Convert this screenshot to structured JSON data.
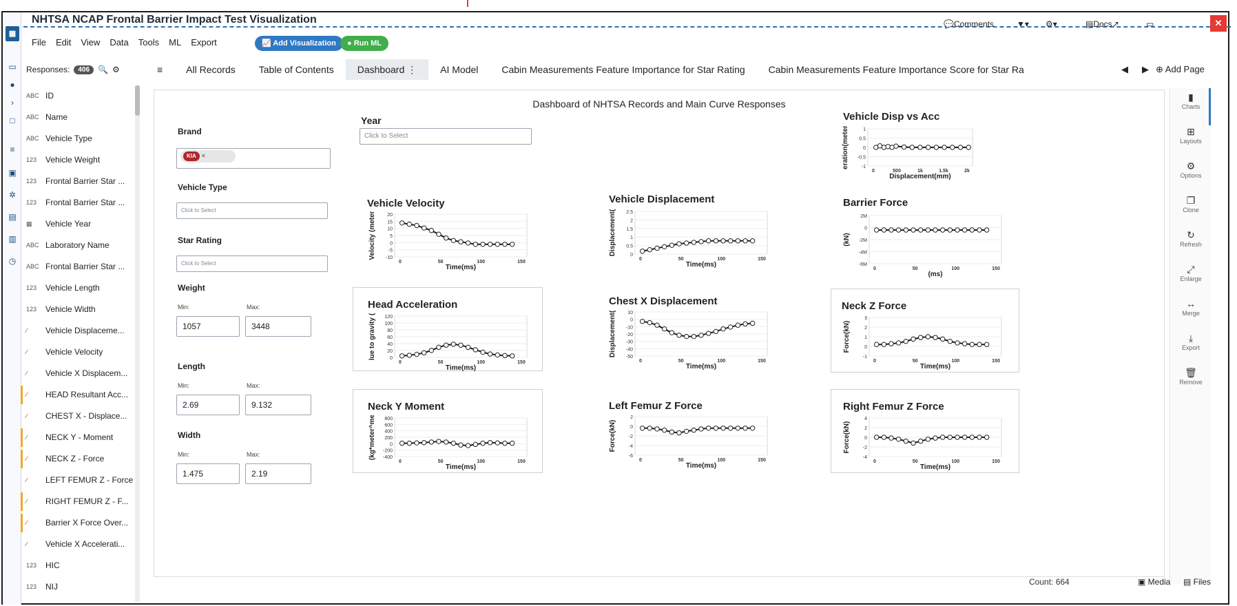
{
  "app": {
    "title": "NHTSA NCAP Frontal Barrier Impact Test Visualization",
    "logo_icon": "app-logo-icon"
  },
  "menu": [
    "File",
    "Edit",
    "View",
    "Data",
    "Tools",
    "ML",
    "Export"
  ],
  "toolbar": {
    "add_visualization": "Add Visualization",
    "run_ml": "Run ML",
    "comments": "Comments",
    "docs": "Docs"
  },
  "colors": {
    "accent_blue": "#2f78c4",
    "run_green": "#3fae4b",
    "close_red": "#e53935",
    "marker_orange": "#f5a623"
  },
  "responses": {
    "label": "Responses:",
    "count": "406",
    "items": [
      {
        "type": "ABC",
        "label": "ID",
        "marked": false
      },
      {
        "type": "ABC",
        "label": "Name",
        "marked": false
      },
      {
        "type": "ABC",
        "label": "Vehicle Type",
        "marked": false
      },
      {
        "type": "123",
        "label": "Vehicle Weight",
        "marked": false
      },
      {
        "type": "123",
        "label": "Frontal Barrier Star ...",
        "marked": false
      },
      {
        "type": "123",
        "label": "Frontal Barrier Star ...",
        "marked": false
      },
      {
        "type": "cal",
        "label": "Vehicle Year",
        "marked": false
      },
      {
        "type": "ABC",
        "label": "Laboratory Name",
        "marked": false
      },
      {
        "type": "ABC",
        "label": "Frontal Barrier Star ...",
        "marked": false
      },
      {
        "type": "123",
        "label": "Vehicle Length",
        "marked": false
      },
      {
        "type": "123",
        "label": "Vehicle Width",
        "marked": false
      },
      {
        "type": "crv",
        "label": "Vehicle Displaceme...",
        "marked": false
      },
      {
        "type": "crv",
        "label": "Vehicle Velocity",
        "marked": false
      },
      {
        "type": "crv",
        "label": "Vehicle X Displacem...",
        "marked": false
      },
      {
        "type": "crv",
        "label": "HEAD Resultant Acc...",
        "marked": true
      },
      {
        "type": "crv",
        "label": "CHEST X - Displace...",
        "marked": false
      },
      {
        "type": "crv",
        "label": "NECK Y - Moment",
        "marked": true
      },
      {
        "type": "crv",
        "label": "NECK Z - Force",
        "marked": true
      },
      {
        "type": "crv",
        "label": "LEFT FEMUR Z - Force",
        "marked": false
      },
      {
        "type": "crv",
        "label": "RIGHT FEMUR Z - F...",
        "marked": true
      },
      {
        "type": "crv",
        "label": "Barrier X Force Over...",
        "marked": true
      },
      {
        "type": "crv",
        "label": "Vehicle X Accelerati...",
        "marked": false
      },
      {
        "type": "123",
        "label": "HIC",
        "marked": false
      },
      {
        "type": "123",
        "label": "NIJ",
        "marked": false
      }
    ]
  },
  "tabs": [
    {
      "label": "All Records",
      "active": false
    },
    {
      "label": "Table of Contents",
      "active": false
    },
    {
      "label": "Dashboard",
      "active": true
    },
    {
      "label": "AI Model",
      "active": false
    },
    {
      "label": "Cabin Measurements Feature Importance for Star Rating",
      "active": false
    },
    {
      "label": "Cabin Measurements Feature Importance Score for Star Ra",
      "active": false
    }
  ],
  "add_page": "Add Page",
  "dashboard": {
    "title": "Dashboard of NHTSA Records and Main Curve Responses",
    "filters": {
      "brand": {
        "label": "Brand",
        "chip": "KIA"
      },
      "year": {
        "label": "Year",
        "placeholder": "Click to Select"
      },
      "vehicle_type": {
        "label": "Vehicle Type",
        "placeholder": "Click to Select"
      },
      "star_rating": {
        "label": "Star Rating",
        "placeholder": "Click to Select"
      },
      "weight": {
        "label": "Weight",
        "min_label": "Min:",
        "max_label": "Max:",
        "min": "1057",
        "max": "3448"
      },
      "length": {
        "label": "Length",
        "min_label": "Min:",
        "max_label": "Max:",
        "min": "2.69",
        "max": "9.132"
      },
      "width": {
        "label": "Width",
        "min_label": "Min:",
        "max_label": "Max:",
        "min": "1.475",
        "max": "2.19"
      }
    }
  },
  "chart_data": [
    {
      "id": "disp-acc",
      "type": "line",
      "title": "Vehicle Disp vs Acc",
      "xlabel": "Displacement(mm)",
      "ylabel": "eration(meter",
      "x_ticks": [
        "0",
        "500",
        "1k",
        "1.5k",
        "2k"
      ],
      "y_ticks": [
        "1",
        "0.5",
        "0",
        "-0.5",
        "-1"
      ],
      "xlim": [
        -200,
        2400
      ],
      "ylim": [
        -1.2,
        1.2
      ],
      "series": [
        {
          "x": [
            0,
            100,
            200,
            300,
            400,
            500,
            700,
            900,
            1100,
            1300,
            1500,
            1700,
            1900,
            2100,
            2300
          ],
          "values": [
            0,
            0.1,
            0,
            0.05,
            0,
            0.08,
            0.02,
            0,
            0,
            0,
            0,
            0,
            0,
            0,
            0
          ]
        }
      ]
    },
    {
      "id": "velocity",
      "type": "line",
      "title": "Vehicle Velocity",
      "xlabel": "Time(ms)",
      "ylabel": "Velocity (meter",
      "x_ticks": [
        "0",
        "50",
        "100",
        "150"
      ],
      "y_ticks": [
        "20",
        "15",
        "10",
        "5",
        "0",
        "-5",
        "-10"
      ],
      "xlim": [
        -10,
        170
      ],
      "ylim": [
        -12,
        22
      ],
      "series": [
        {
          "x": [
            0,
            10,
            20,
            30,
            40,
            50,
            60,
            70,
            80,
            90,
            100,
            110,
            120,
            130,
            140,
            150
          ],
          "values": [
            15,
            14,
            13,
            11,
            9,
            6,
            3,
            1,
            0,
            -1,
            -2,
            -2,
            -2,
            -2,
            -2,
            -2
          ]
        }
      ]
    },
    {
      "id": "displacement",
      "type": "line",
      "title": "Vehicle Displacement",
      "xlabel": "Time(ms)",
      "ylabel": "Displacement(",
      "x_ticks": [
        "0",
        "50",
        "100",
        "150"
      ],
      "y_ticks": [
        "2.5",
        "2",
        "1.5",
        "1",
        "0.5",
        "0"
      ],
      "xlim": [
        -10,
        170
      ],
      "ylim": [
        -0.2,
        2.7
      ],
      "series": [
        {
          "x": [
            0,
            10,
            20,
            30,
            40,
            50,
            60,
            70,
            80,
            90,
            100,
            110,
            120,
            130,
            140,
            150
          ],
          "values": [
            0,
            0.1,
            0.2,
            0.3,
            0.4,
            0.5,
            0.55,
            0.6,
            0.65,
            0.7,
            0.7,
            0.7,
            0.7,
            0.7,
            0.7,
            0.7
          ]
        }
      ]
    },
    {
      "id": "barrier",
      "type": "line",
      "title": "Barrier Force",
      "xlabel": "(ms)",
      "ylabel": "(kN)",
      "x_ticks": [
        "0",
        "50",
        "100",
        "150"
      ],
      "y_ticks": [
        "2M",
        "0",
        "-2M",
        "-4M",
        "-6M"
      ],
      "xlim": [
        -10,
        170
      ],
      "ylim": [
        -7,
        3
      ],
      "series": [
        {
          "x": [
            0,
            10,
            20,
            30,
            40,
            50,
            60,
            70,
            80,
            90,
            100,
            110,
            120,
            130,
            140,
            150
          ],
          "values": [
            0,
            0,
            0,
            0,
            0,
            0,
            0,
            0,
            0,
            0,
            0,
            0,
            0,
            0,
            0,
            0
          ]
        }
      ]
    },
    {
      "id": "head",
      "type": "line",
      "title": "Head Acceleration",
      "xlabel": "Time(ms)",
      "ylabel": "lue to gravity (",
      "x_ticks": [
        "0",
        "50",
        "100",
        "150"
      ],
      "y_ticks": [
        "120",
        "100",
        "80",
        "60",
        "40",
        "20",
        "0"
      ],
      "xlim": [
        -10,
        170
      ],
      "ylim": [
        -5,
        130
      ],
      "series": [
        {
          "x": [
            0,
            10,
            20,
            30,
            40,
            50,
            60,
            70,
            80,
            90,
            100,
            110,
            120,
            130,
            140,
            150
          ],
          "values": [
            0,
            2,
            5,
            10,
            18,
            28,
            35,
            38,
            35,
            28,
            20,
            12,
            6,
            3,
            1,
            0
          ]
        }
      ]
    },
    {
      "id": "chest",
      "type": "line",
      "title": "Chest X Displacement",
      "xlabel": "Time(ms)",
      "ylabel": "Displacement(",
      "x_ticks": [
        "0",
        "50",
        "100",
        "150"
      ],
      "y_ticks": [
        "10",
        "0",
        "-10",
        "-20",
        "-30",
        "-40",
        "-50"
      ],
      "xlim": [
        -10,
        170
      ],
      "ylim": [
        -55,
        15
      ],
      "series": [
        {
          "x": [
            0,
            10,
            20,
            30,
            40,
            50,
            60,
            70,
            80,
            90,
            100,
            110,
            120,
            130,
            140,
            150
          ],
          "values": [
            0,
            -2,
            -6,
            -12,
            -18,
            -22,
            -24,
            -24,
            -22,
            -19,
            -16,
            -12,
            -9,
            -6,
            -4,
            -3
          ]
        }
      ]
    },
    {
      "id": "neckz",
      "type": "line",
      "title": "Neck Z Force",
      "xlabel": "Time(ms)",
      "ylabel": "Force(kN)",
      "x_ticks": [
        "0",
        "50",
        "100",
        "150"
      ],
      "y_ticks": [
        "3",
        "2",
        "1",
        "0",
        "-1"
      ],
      "xlim": [
        -10,
        170
      ],
      "ylim": [
        -1.5,
        3.5
      ],
      "series": [
        {
          "x": [
            0,
            10,
            20,
            30,
            40,
            50,
            60,
            70,
            80,
            90,
            100,
            110,
            120,
            130,
            140,
            150
          ],
          "values": [
            0,
            0,
            0.1,
            0.2,
            0.4,
            0.7,
            0.9,
            1.0,
            0.9,
            0.7,
            0.4,
            0.2,
            0.1,
            0,
            0,
            0
          ]
        }
      ]
    },
    {
      "id": "necky",
      "type": "line",
      "title": "Neck Y Moment",
      "xlabel": "Time(ms)",
      "ylabel": "(kg*meter^me",
      "x_ticks": [
        "0",
        "50",
        "100",
        "150"
      ],
      "y_ticks": [
        "800",
        "600",
        "400",
        "200",
        "0",
        "-200",
        "-400"
      ],
      "xlim": [
        -10,
        170
      ],
      "ylim": [
        -450,
        850
      ],
      "series": [
        {
          "x": [
            0,
            10,
            20,
            30,
            40,
            50,
            60,
            70,
            80,
            90,
            100,
            110,
            120,
            130,
            140,
            150
          ],
          "values": [
            0,
            0,
            10,
            20,
            40,
            60,
            40,
            0,
            -60,
            -80,
            -40,
            0,
            20,
            10,
            0,
            0
          ]
        }
      ]
    },
    {
      "id": "lfemur",
      "type": "line",
      "title": "Left Femur Z Force",
      "xlabel": "Time(ms)",
      "ylabel": "Force(kN)",
      "x_ticks": [
        "0",
        "50",
        "100",
        "150"
      ],
      "y_ticks": [
        "2",
        "0",
        "-2",
        "-4",
        "-6"
      ],
      "xlim": [
        -10,
        170
      ],
      "ylim": [
        -7,
        3
      ],
      "series": [
        {
          "x": [
            0,
            10,
            20,
            30,
            40,
            50,
            60,
            70,
            80,
            90,
            100,
            110,
            120,
            130,
            140,
            150
          ],
          "values": [
            0,
            0,
            -0.2,
            -0.5,
            -1,
            -1.2,
            -0.8,
            -0.5,
            -0.2,
            0,
            0,
            0,
            0,
            0,
            0,
            0
          ]
        }
      ]
    },
    {
      "id": "rfemur",
      "type": "line",
      "title": "Right Femur Z Force",
      "xlabel": "Time(ms)",
      "ylabel": "Force(kN)",
      "x_ticks": [
        "0",
        "50",
        "100",
        "150"
      ],
      "y_ticks": [
        "4",
        "2",
        "0",
        "-2",
        "-4"
      ],
      "xlim": [
        -10,
        170
      ],
      "ylim": [
        -5,
        5
      ],
      "series": [
        {
          "x": [
            0,
            10,
            20,
            30,
            40,
            50,
            60,
            70,
            80,
            90,
            100,
            110,
            120,
            130,
            140,
            150
          ],
          "values": [
            0,
            0,
            -0.2,
            -0.5,
            -1,
            -1.5,
            -1.0,
            -0.5,
            -0.2,
            0,
            0,
            0,
            0,
            0,
            0,
            0
          ]
        }
      ]
    }
  ],
  "right_toolbar": [
    {
      "label": "Charts",
      "icon": "bar-chart-icon"
    },
    {
      "label": "Layouts",
      "icon": "grid-icon"
    },
    {
      "label": "Options",
      "icon": "gear-icon"
    },
    {
      "label": "Clone",
      "icon": "copy-icon"
    },
    {
      "label": "Refresh",
      "icon": "refresh-icon"
    },
    {
      "label": "Enlarge",
      "icon": "expand-icon"
    },
    {
      "label": "Merge",
      "icon": "merge-icon"
    },
    {
      "label": "Export",
      "icon": "download-icon"
    },
    {
      "label": "Remove",
      "icon": "trash-icon"
    }
  ],
  "status": {
    "count": "Count: 664",
    "media": "Media",
    "files": "Files"
  }
}
